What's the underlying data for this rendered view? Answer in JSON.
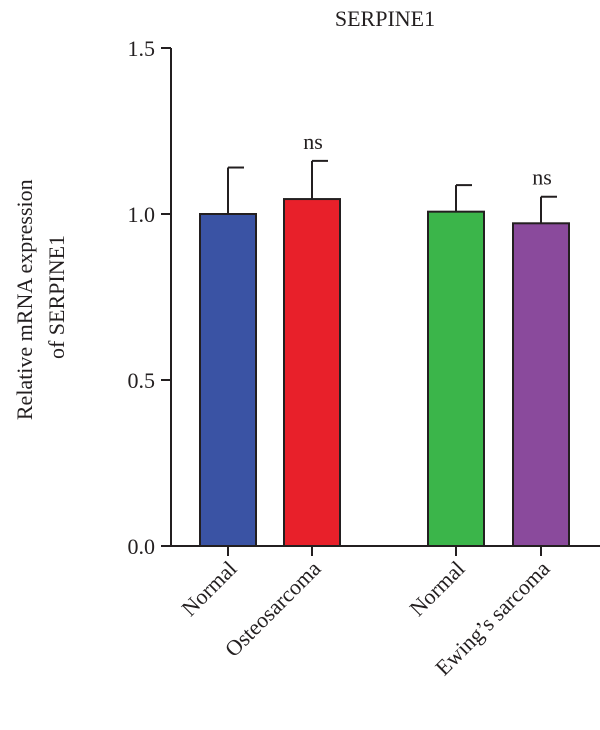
{
  "chart_data": {
    "type": "bar",
    "title": "SERPINE1",
    "ylabel_lines": [
      "Relative mRNA expression",
      "of SERPINE1"
    ],
    "xlabel": "",
    "ylim": [
      0,
      1.5
    ],
    "yticks": [
      0.0,
      0.5,
      1.0,
      1.5
    ],
    "ytick_labels": [
      "0.0",
      "0.5",
      "1.0",
      "1.5"
    ],
    "grid": false,
    "categories": [
      "Normal",
      "Osteosarcoma",
      "Normal",
      "Ewing’s sarcoma"
    ],
    "values": [
      1.0,
      1.045,
      1.007,
      0.972
    ],
    "errors": [
      0.14,
      0.115,
      0.08,
      0.08
    ],
    "colors": [
      "#3a53a4",
      "#e8202a",
      "#3bb54a",
      "#8a4a9c"
    ],
    "annotations": [
      "",
      "ns",
      "",
      "ns"
    ]
  }
}
